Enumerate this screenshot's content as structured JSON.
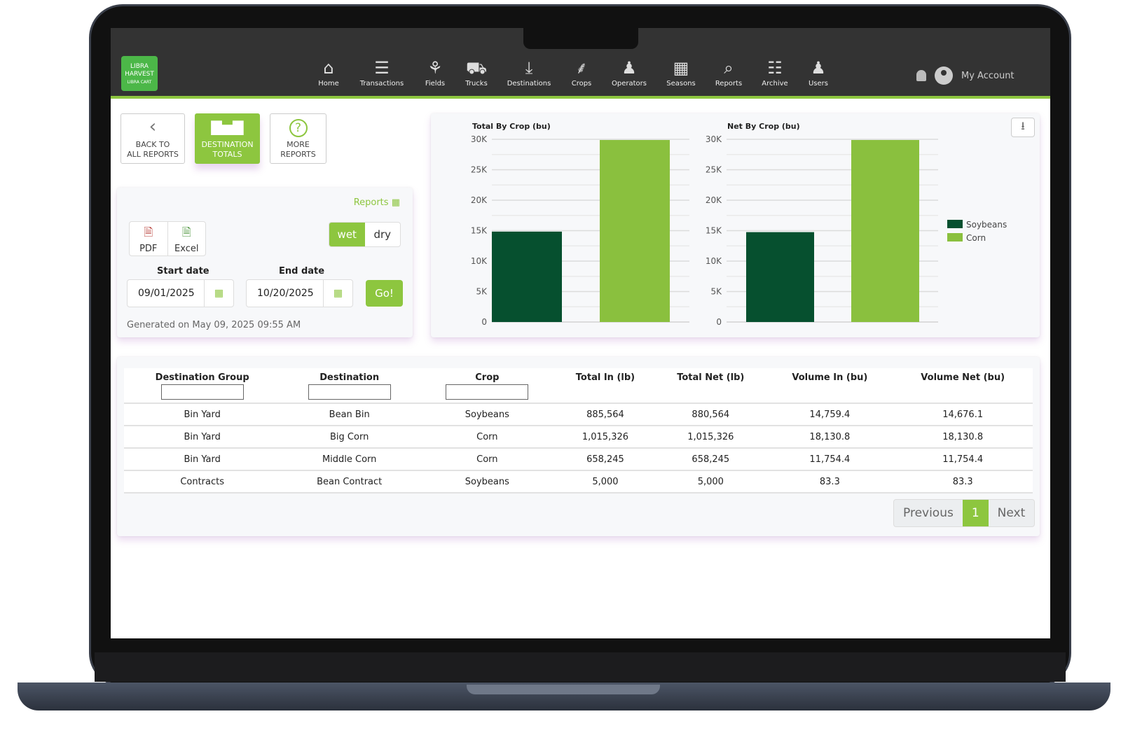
{
  "nav": {
    "brand": "LIBRA HARVEST",
    "brand_sub": "LIBRA CART",
    "items": [
      {
        "label": "Home",
        "icon": "home-icon"
      },
      {
        "label": "Transactions",
        "icon": "receipt-icon"
      },
      {
        "label": "Fields",
        "icon": "sprout-icon"
      },
      {
        "label": "Trucks",
        "icon": "truck-icon"
      },
      {
        "label": "Destinations",
        "icon": "download-bin-icon"
      },
      {
        "label": "Crops",
        "icon": "wheat-icon"
      },
      {
        "label": "Operators",
        "icon": "operator-icon"
      },
      {
        "label": "Seasons",
        "icon": "calendar-icon"
      },
      {
        "label": "Reports",
        "icon": "report-search-icon"
      },
      {
        "label": "Archive",
        "icon": "archive-icon"
      },
      {
        "label": "Users",
        "icon": "users-icon"
      }
    ],
    "account": "My Account"
  },
  "toolbar": {
    "back": [
      "BACK TO",
      "ALL REPORTS"
    ],
    "current": [
      "DESTINATION",
      "TOTALS"
    ],
    "more": [
      "MORE",
      "REPORTS"
    ]
  },
  "filters": {
    "reports_link": "Reports",
    "pdf": "PDF",
    "excel": "Excel",
    "wet": "wet",
    "dry": "dry",
    "wet_selected": true,
    "start_label": "Start date",
    "start_value": "09/01/2025",
    "end_label": "End date",
    "end_value": "10/20/2025",
    "go": "Go!",
    "generated": "Generated on May 09, 2025 09:55 AM"
  },
  "colors": {
    "accent": "#8dc63f",
    "soybeans": "#06502f",
    "corn": "#8ac03e",
    "topbar": "#333333"
  },
  "chart_data": [
    {
      "type": "bar",
      "title": "Total By Crop (bu)",
      "categories": [
        "Soybeans",
        "Corn"
      ],
      "values": [
        14842.7,
        29885.2
      ],
      "ylim": [
        0,
        30000
      ],
      "yticks": [
        "0",
        "5K",
        "10K",
        "15K",
        "20K",
        "25K",
        "30K"
      ],
      "grid": true
    },
    {
      "type": "bar",
      "title": "Net By Crop (bu)",
      "categories": [
        "Soybeans",
        "Corn"
      ],
      "values": [
        14759.4,
        29885.2
      ],
      "ylim": [
        0,
        30000
      ],
      "yticks": [
        "0",
        "5K",
        "10K",
        "15K",
        "20K",
        "25K",
        "30K"
      ],
      "grid": true,
      "legend": "right",
      "legend_entries": [
        "Soybeans",
        "Corn"
      ]
    }
  ],
  "table": {
    "headers": [
      "Destination Group",
      "Destination",
      "Crop",
      "Total In (lb)",
      "Total Net (lb)",
      "Volume In (bu)",
      "Volume Net (bu)"
    ],
    "rows": [
      [
        "Bin Yard",
        "Bean Bin",
        "Soybeans",
        "885,564",
        "880,564",
        "14,759.4",
        "14,676.1"
      ],
      [
        "Bin Yard",
        "Big Corn",
        "Corn",
        "1,015,326",
        "1,015,326",
        "18,130.8",
        "18,130.8"
      ],
      [
        "Bin Yard",
        "Middle Corn",
        "Corn",
        "658,245",
        "658,245",
        "11,754.4",
        "11,754.4"
      ],
      [
        "Contracts",
        "Bean Contract",
        "Soybeans",
        "5,000",
        "5,000",
        "83.3",
        "83.3"
      ]
    ]
  },
  "pagination": {
    "previous": "Previous",
    "current": "1",
    "next": "Next"
  }
}
